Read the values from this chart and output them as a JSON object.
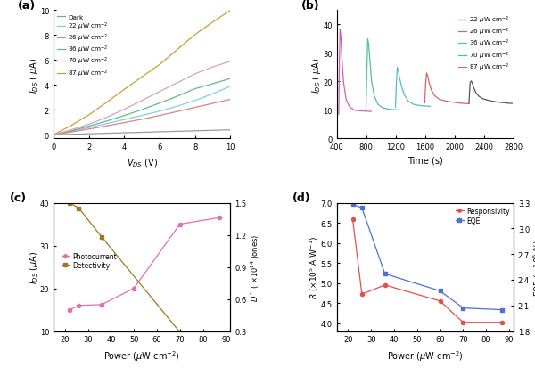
{
  "panel_a": {
    "xlabel": "$V_{DS}$ (V)",
    "ylabel": "$I_{DS}$ ( $\\mu$A)",
    "xlim": [
      0,
      10
    ],
    "ylim": [
      -0.3,
      10
    ],
    "yticks": [
      0,
      2,
      4,
      6,
      8,
      10
    ],
    "xticks": [
      0,
      2,
      4,
      6,
      8,
      10
    ],
    "series": [
      {
        "label": "Dark",
        "color": "#999999",
        "x": [
          0,
          1,
          2,
          3,
          4,
          5,
          6,
          7,
          8,
          9,
          10
        ],
        "y": [
          0,
          0.04,
          0.08,
          0.12,
          0.16,
          0.2,
          0.24,
          0.28,
          0.32,
          0.36,
          0.4
        ]
      },
      {
        "label": "22 $\\mu$W cm$^{-2}$",
        "color": "#7ecfed",
        "x": [
          0,
          1,
          2,
          3,
          4,
          5,
          6,
          7,
          8,
          9,
          10
        ],
        "y": [
          0,
          0.28,
          0.58,
          0.9,
          1.22,
          1.55,
          1.9,
          2.3,
          2.75,
          3.3,
          3.9
        ]
      },
      {
        "label": "26 $\\mu$W cm$^{-2}$",
        "color": "#e08080",
        "x": [
          0,
          1,
          2,
          3,
          4,
          5,
          6,
          7,
          8,
          9,
          10
        ],
        "y": [
          0,
          0.22,
          0.46,
          0.72,
          0.98,
          1.25,
          1.55,
          1.87,
          2.2,
          2.52,
          2.85
        ]
      },
      {
        "label": "36 $\\mu$W cm$^{-2}$",
        "color": "#60b890",
        "x": [
          0,
          1,
          2,
          3,
          4,
          5,
          6,
          7,
          8,
          9,
          10
        ],
        "y": [
          0,
          0.32,
          0.7,
          1.1,
          1.55,
          2.02,
          2.55,
          3.1,
          3.7,
          4.1,
          4.52
        ]
      },
      {
        "label": "70 $\\mu$W cm$^{-2}$",
        "color": "#d4a0c8",
        "x": [
          0,
          1,
          2,
          3,
          4,
          5,
          6,
          7,
          8,
          9,
          10
        ],
        "y": [
          0,
          0.4,
          0.85,
          1.4,
          2.05,
          2.75,
          3.48,
          4.18,
          4.9,
          5.45,
          5.9
        ]
      },
      {
        "label": "87 $\\mu$W cm$^{-2}$",
        "color": "#c8a030",
        "x": [
          0,
          1,
          2,
          3,
          4,
          5,
          6,
          7,
          8,
          9,
          10
        ],
        "y": [
          0,
          0.75,
          1.6,
          2.6,
          3.65,
          4.65,
          5.65,
          6.85,
          8.05,
          9.05,
          10.0
        ]
      }
    ]
  },
  "panel_b": {
    "xlabel": "Time (s)",
    "ylabel": "$I_{DS}$ ( $\\mu$A)",
    "xlim": [
      400,
      2800
    ],
    "ylim": [
      0,
      45
    ],
    "yticks": [
      0,
      10,
      20,
      30,
      40
    ],
    "xticks": [
      400,
      800,
      1200,
      1600,
      2000,
      2400,
      2800
    ],
    "series": [
      {
        "label": "22 $\\mu$W cm$^{-2}$",
        "color": "#555555",
        "x": [
          2195,
          2210,
          2225,
          2240,
          2260,
          2290,
          2330,
          2380,
          2440,
          2510,
          2580,
          2650,
          2720,
          2780
        ],
        "y": [
          12.5,
          19.5,
          20.2,
          19.5,
          17.8,
          16.0,
          14.8,
          14.0,
          13.5,
          13.1,
          12.8,
          12.6,
          12.4,
          12.3
        ]
      },
      {
        "label": "26 $\\mu$W cm$^{-2}$",
        "color": "#e06060",
        "x": [
          1595,
          1608,
          1620,
          1635,
          1655,
          1685,
          1730,
          1790,
          1870,
          1960,
          2050,
          2130,
          2200
        ],
        "y": [
          12.5,
          19.5,
          23.0,
          22.0,
          19.5,
          17.0,
          15.0,
          13.8,
          13.2,
          12.8,
          12.5,
          12.3,
          12.2
        ]
      },
      {
        "label": "36 $\\mu$W cm$^{-2}$",
        "color": "#50bfc0",
        "x": [
          1198,
          1210,
          1222,
          1235,
          1252,
          1278,
          1315,
          1370,
          1440,
          1520,
          1600,
          1670
        ],
        "y": [
          11.0,
          19.5,
          25.0,
          24.0,
          21.5,
          18.5,
          15.5,
          13.2,
          12.0,
          11.6,
          11.4,
          11.3
        ]
      },
      {
        "label": "70 $\\mu$W cm$^{-2}$",
        "color": "#50c0a0",
        "x": [
          798,
          810,
          822,
          835,
          852,
          875,
          910,
          960,
          1020,
          1100,
          1180,
          1260
        ],
        "y": [
          9.5,
          24.0,
          35.0,
          33.0,
          27.0,
          20.0,
          15.0,
          12.0,
          10.8,
          10.3,
          10.1,
          10.0
        ]
      },
      {
        "label": "87 $\\mu$W cm$^{-2}$",
        "color": "#d060b0",
        "x": [
          428,
          437,
          446,
          457,
          472,
          495,
          530,
          580,
          645,
          720,
          800,
          870
        ],
        "y": [
          8.5,
          27.0,
          38.5,
          36.0,
          28.0,
          19.5,
          13.5,
          11.0,
          9.9,
          9.7,
          9.6,
          9.5
        ]
      }
    ]
  },
  "panel_c": {
    "xlabel": "Power ($\\mu$W cm$^{-2}$)",
    "ylabel_left": "$I_{DS}$ ($\\mu$A)",
    "ylabel_right": "$D^*$ ( $\\times$10$^{14}$ Jones)",
    "xlim": [
      15,
      92
    ],
    "ylim_left": [
      10,
      40
    ],
    "ylim_right": [
      0.3,
      1.5
    ],
    "yticks_left": [
      10,
      20,
      30,
      40
    ],
    "yticks_right": [
      0.3,
      0.6,
      0.9,
      1.2,
      1.5
    ],
    "xticks": [
      20,
      30,
      40,
      50,
      60,
      70,
      80,
      90
    ],
    "photocurrent": {
      "label": "Photocurrent",
      "color": "#e070b0",
      "x": [
        22,
        26,
        36,
        50,
        70,
        87
      ],
      "y": [
        15.0,
        16.0,
        16.2,
        20.0,
        35.0,
        36.5
      ]
    },
    "detectivity": {
      "label": "Detectivity",
      "color": "#a07820",
      "x": [
        22,
        26,
        36,
        70,
        87
      ],
      "y": [
        1.5,
        1.45,
        1.18,
        0.29,
        0.27
      ]
    }
  },
  "panel_d": {
    "xlabel": "Power ($\\mu$W cm$^{-2}$)",
    "ylabel_left": "$R$ ($\\times$10$^5$ A W$^{-1}$)",
    "ylabel_right": "EQE ($\\times$10$^6$ %)",
    "xlim": [
      15,
      92
    ],
    "ylim_left": [
      3.8,
      7.0
    ],
    "ylim_right": [
      1.8,
      3.3
    ],
    "yticks_left": [
      4.0,
      4.5,
      5.0,
      5.5,
      6.0,
      6.5,
      7.0
    ],
    "yticks_right": [
      1.8,
      2.1,
      2.4,
      2.7,
      3.0,
      3.3
    ],
    "xticks": [
      20,
      30,
      40,
      50,
      60,
      70,
      80,
      90
    ],
    "responsivity": {
      "label": "Responsivity",
      "color": "#e05050",
      "x": [
        22,
        26,
        36,
        60,
        70,
        87
      ],
      "y": [
        6.58,
        4.72,
        4.95,
        4.55,
        4.02,
        4.02
      ]
    },
    "eqe": {
      "label": "EQE",
      "color": "#5070d0",
      "x": [
        22,
        26,
        36,
        60,
        70,
        87
      ],
      "y": [
        3.28,
        3.24,
        2.47,
        2.27,
        2.07,
        2.05
      ]
    }
  }
}
